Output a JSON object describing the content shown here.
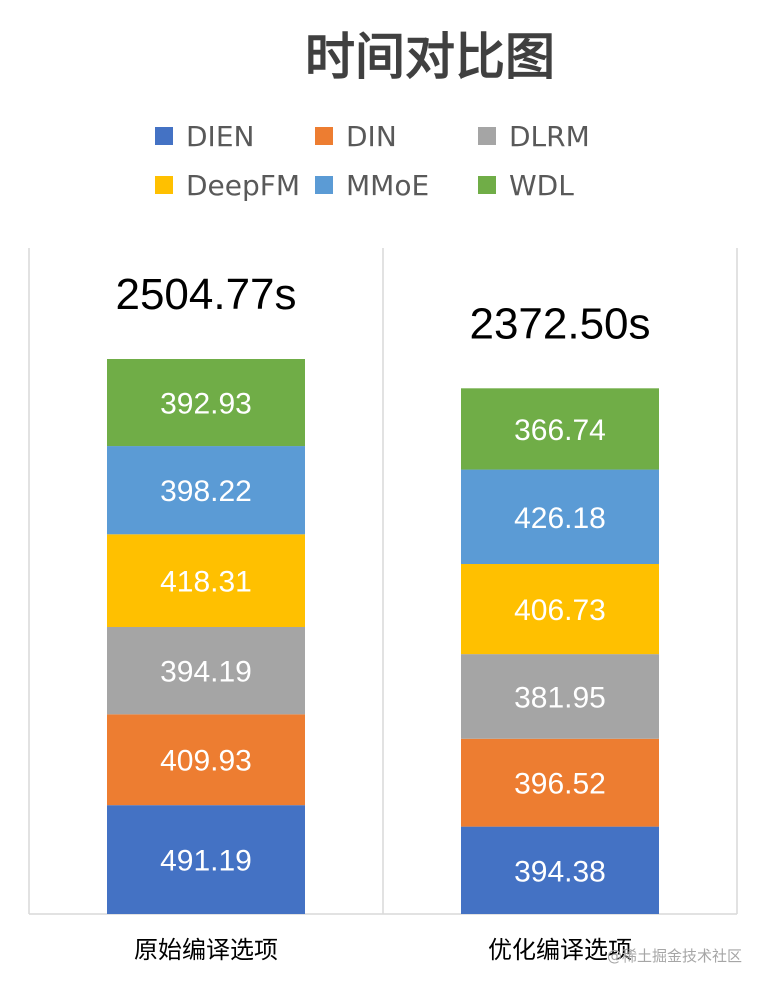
{
  "chart_data": {
    "type": "bar",
    "stacked": true,
    "title": "时间对比图",
    "categories": [
      "原始编译选项",
      "优化编译选项"
    ],
    "totals": [
      "2504.77s",
      "2372.50s"
    ],
    "series": [
      {
        "name": "DIEN",
        "color": "#4472C4",
        "values": [
          491.19,
          394.38
        ]
      },
      {
        "name": "DIN",
        "color": "#ED7D31",
        "values": [
          409.93,
          396.52
        ]
      },
      {
        "name": "DLRM",
        "color": "#A5A5A5",
        "values": [
          394.19,
          381.95
        ]
      },
      {
        "name": "DeepFM",
        "color": "#FFC000",
        "values": [
          418.31,
          406.73
        ]
      },
      {
        "name": "MMoE",
        "color": "#5B9BD5",
        "values": [
          398.22,
          426.18
        ]
      },
      {
        "name": "WDL",
        "color": "#70AD47",
        "values": [
          392.93,
          366.74
        ]
      }
    ],
    "value_labels": [
      [
        "491.19",
        "409.93",
        "394.19",
        "418.31",
        "398.22",
        "392.93"
      ],
      [
        "394.38",
        "396.52",
        "381.95",
        "406.73",
        "426.18",
        "366.74"
      ]
    ],
    "legend_position": "top",
    "grid": false
  },
  "watermark": "@稀土掘金技术社区"
}
